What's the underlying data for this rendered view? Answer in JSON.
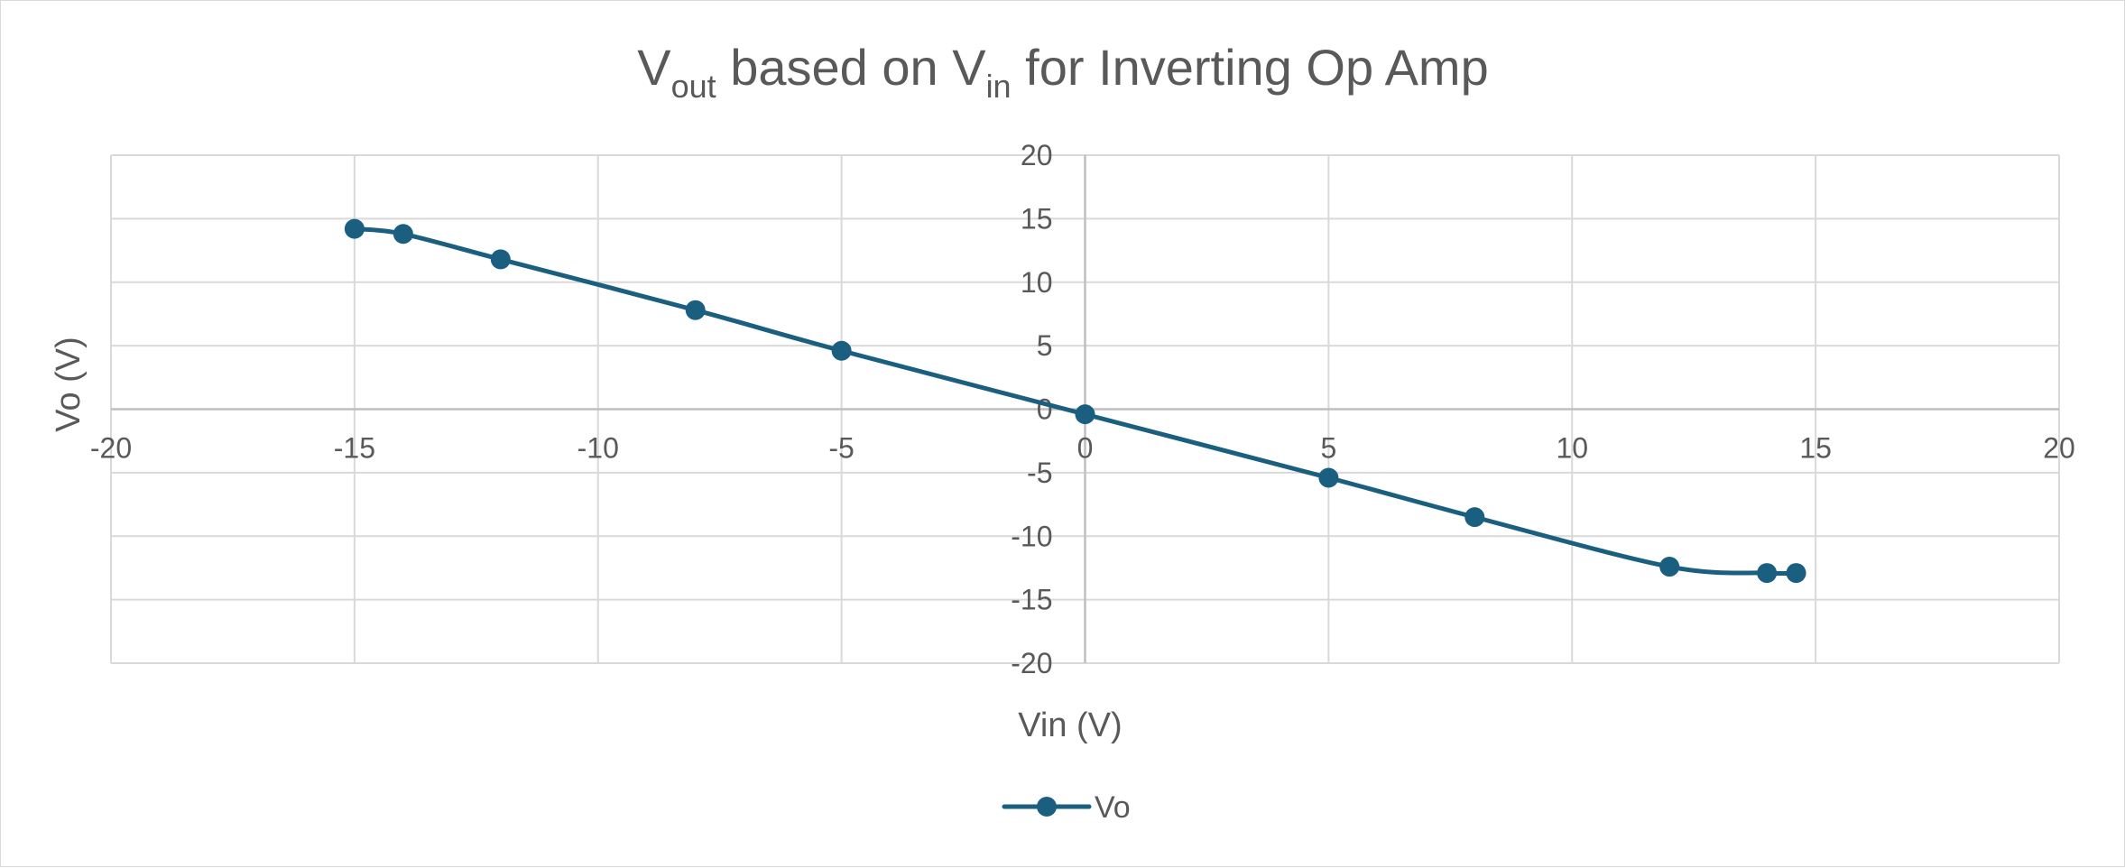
{
  "chart_data": {
    "type": "line",
    "smooth": true,
    "title": {
      "segments": [
        {
          "text": "V",
          "style": "normal"
        },
        {
          "text": "out",
          "style": "sub"
        },
        {
          "text": " based on V",
          "style": "normal"
        },
        {
          "text": "in",
          "style": "sub"
        },
        {
          "text": " for Inverting Op Amp",
          "style": "normal"
        }
      ]
    },
    "xlabel": "Vin (V)",
    "ylabel": "Vo (V)",
    "xlim": [
      -20,
      20
    ],
    "ylim": [
      -20,
      20
    ],
    "x_ticks": [
      -20,
      -15,
      -10,
      -5,
      0,
      5,
      10,
      15,
      20
    ],
    "y_ticks": [
      20,
      15,
      10,
      5,
      0,
      -5,
      -10,
      -15,
      -20
    ],
    "grid": true,
    "legend": {
      "position": "bottom"
    },
    "series": [
      {
        "name": "Vo",
        "color": "#1b5f80",
        "marker": "circle",
        "x": [
          -15,
          -14,
          -12,
          -8,
          -5,
          0,
          5,
          8,
          12,
          14,
          14.6
        ],
        "y": [
          14.2,
          13.8,
          11.8,
          7.8,
          4.6,
          -0.4,
          -5.4,
          -8.5,
          -12.4,
          -12.9,
          -12.9
        ]
      }
    ],
    "colors": {
      "grid": "#d9d9d9",
      "axis": "#bfbfbf",
      "text": "#595959"
    }
  }
}
